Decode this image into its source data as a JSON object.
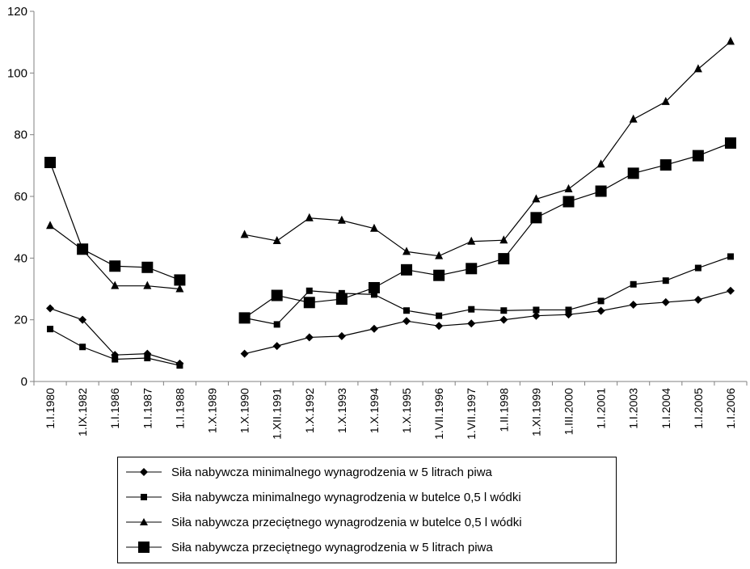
{
  "chart_data": {
    "type": "line",
    "categories": [
      "1.I.1980",
      "1.IX.1982",
      "1.I.1986",
      "1.I.1987",
      "1.I.1988",
      "1.X.1989",
      "1.X.1990",
      "1.XII.1991",
      "1.X.1992",
      "1.X.1993",
      "1.X.1994",
      "1.X.1995",
      "1.VII.1996",
      "1.VII.1997",
      "1.II.1998",
      "1.XI.1999",
      "1.III.2000",
      "1.I.2001",
      "1.I.2003",
      "1.I.2004",
      "1.I.2005",
      "1.I.2006"
    ],
    "ylim": [
      0,
      120
    ],
    "yticks": [
      0,
      20,
      40,
      60,
      80,
      100,
      120
    ],
    "series": [
      {
        "name": "Siła nabywcza minimalnego wynagrodzenia w 5 litrach piwa",
        "marker": "diamond",
        "values": [
          23.7,
          20.0,
          8.6,
          9.0,
          5.8,
          null,
          9.0,
          11.5,
          14.3,
          14.7,
          17.1,
          19.6,
          18.0,
          18.8,
          20.0,
          21.3,
          21.7,
          22.9,
          24.9,
          25.7,
          26.5,
          29.4
        ]
      },
      {
        "name": "Siła nabywcza minimalnego wynagrodzenia w butelce 0,5 l wódki",
        "marker": "square-small",
        "values": [
          17.0,
          11.2,
          7.2,
          7.6,
          5.2,
          null,
          20.6,
          18.5,
          29.4,
          28.6,
          28.2,
          23.0,
          21.3,
          23.4,
          23.0,
          23.2,
          23.2,
          26.1,
          31.5,
          32.7,
          36.8,
          40.5
        ]
      },
      {
        "name": "Siła nabywcza przeciętnego wynagrodzenia w butelce 0,5 l wódki",
        "marker": "triangle",
        "values": [
          50.5,
          42.7,
          31.0,
          31.0,
          30.0,
          null,
          47.6,
          45.6,
          53.0,
          52.2,
          49.6,
          42.1,
          40.7,
          45.4,
          45.8,
          59.1,
          62.4,
          70.4,
          85.0,
          90.7,
          101.3,
          110.2
        ]
      },
      {
        "name": "Siła nabywcza przeciętnego wynagrodzenia w 5 litrach piwa",
        "marker": "square-large",
        "values": [
          71.0,
          42.9,
          37.4,
          37.0,
          32.9,
          null,
          20.6,
          27.9,
          25.6,
          26.7,
          30.4,
          36.2,
          34.4,
          36.6,
          39.8,
          53.1,
          58.3,
          61.7,
          67.5,
          70.2,
          73.2,
          77.3
        ]
      }
    ],
    "grid": false,
    "legend_position": "bottom"
  }
}
